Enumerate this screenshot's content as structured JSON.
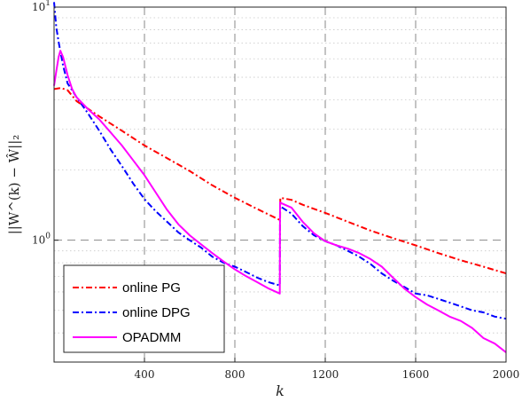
{
  "chart_data": {
    "type": "line",
    "title": "",
    "xlabel": "k",
    "ylabel": "||W^(k) − Ŵ||₂",
    "xlim": [
      0,
      2000
    ],
    "ylim": [
      0.3,
      10
    ],
    "yscale": "log",
    "x_ticks": [
      400,
      800,
      1200,
      1600,
      2000
    ],
    "x_tick_labels": [
      "400",
      "800",
      "1200",
      "1600",
      "2000"
    ],
    "y_ticks": [
      1,
      10
    ],
    "y_tick_labels": [
      "10^0",
      "10^1"
    ],
    "grid": true,
    "legend_position": "bottom-left",
    "series": [
      {
        "name": "online PG",
        "color": "#ff0000",
        "style": "dashdot",
        "points": [
          [
            0,
            4.45
          ],
          [
            30,
            4.5
          ],
          [
            60,
            4.4
          ],
          [
            100,
            3.95
          ],
          [
            200,
            3.4
          ],
          [
            300,
            2.95
          ],
          [
            400,
            2.55
          ],
          [
            500,
            2.25
          ],
          [
            600,
            1.98
          ],
          [
            700,
            1.72
          ],
          [
            800,
            1.52
          ],
          [
            900,
            1.36
          ],
          [
            1000,
            1.22
          ],
          [
            1001,
            1.52
          ],
          [
            1050,
            1.49
          ],
          [
            1100,
            1.42
          ],
          [
            1200,
            1.31
          ],
          [
            1300,
            1.2
          ],
          [
            1400,
            1.1
          ],
          [
            1500,
            1.02
          ],
          [
            1600,
            0.95
          ],
          [
            1700,
            0.88
          ],
          [
            1800,
            0.82
          ],
          [
            1900,
            0.77
          ],
          [
            2000,
            0.72
          ]
        ]
      },
      {
        "name": "online DPG",
        "color": "#0000ff",
        "style": "dashdot",
        "points": [
          [
            0,
            10.5
          ],
          [
            10,
            8.2
          ],
          [
            20,
            7.1
          ],
          [
            40,
            5.6
          ],
          [
            60,
            4.7
          ],
          [
            80,
            4.4
          ],
          [
            100,
            4.1
          ],
          [
            150,
            3.5
          ],
          [
            200,
            2.95
          ],
          [
            250,
            2.45
          ],
          [
            300,
            2.08
          ],
          [
            350,
            1.75
          ],
          [
            400,
            1.5
          ],
          [
            450,
            1.33
          ],
          [
            500,
            1.2
          ],
          [
            550,
            1.08
          ],
          [
            600,
            1.0
          ],
          [
            650,
            0.93
          ],
          [
            700,
            0.85
          ],
          [
            750,
            0.8
          ],
          [
            800,
            0.77
          ],
          [
            850,
            0.73
          ],
          [
            900,
            0.69
          ],
          [
            950,
            0.66
          ],
          [
            999,
            0.64
          ],
          [
            1000,
            1.4
          ],
          [
            1050,
            1.3
          ],
          [
            1100,
            1.15
          ],
          [
            1150,
            1.05
          ],
          [
            1200,
            0.99
          ],
          [
            1250,
            0.95
          ],
          [
            1300,
            0.9
          ],
          [
            1350,
            0.85
          ],
          [
            1400,
            0.79
          ],
          [
            1450,
            0.72
          ],
          [
            1500,
            0.67
          ],
          [
            1550,
            0.63
          ],
          [
            1600,
            0.59
          ],
          [
            1650,
            0.58
          ],
          [
            1700,
            0.56
          ],
          [
            1750,
            0.54
          ],
          [
            1800,
            0.52
          ],
          [
            1850,
            0.5
          ],
          [
            1900,
            0.49
          ],
          [
            1950,
            0.47
          ],
          [
            2000,
            0.46
          ]
        ]
      },
      {
        "name": "OPADMM",
        "color": "#ff00ff",
        "style": "solid",
        "points": [
          [
            0,
            4.6
          ],
          [
            10,
            5.3
          ],
          [
            20,
            6.1
          ],
          [
            28,
            6.5
          ],
          [
            40,
            6.1
          ],
          [
            60,
            5.1
          ],
          [
            80,
            4.45
          ],
          [
            100,
            4.1
          ],
          [
            150,
            3.65
          ],
          [
            200,
            3.3
          ],
          [
            250,
            2.9
          ],
          [
            300,
            2.55
          ],
          [
            350,
            2.2
          ],
          [
            400,
            1.9
          ],
          [
            450,
            1.6
          ],
          [
            500,
            1.35
          ],
          [
            550,
            1.17
          ],
          [
            600,
            1.05
          ],
          [
            650,
            0.96
          ],
          [
            700,
            0.88
          ],
          [
            750,
            0.81
          ],
          [
            800,
            0.75
          ],
          [
            850,
            0.7
          ],
          [
            900,
            0.66
          ],
          [
            950,
            0.62
          ],
          [
            999,
            0.59
          ],
          [
            1000,
            1.45
          ],
          [
            1050,
            1.38
          ],
          [
            1100,
            1.2
          ],
          [
            1150,
            1.07
          ],
          [
            1200,
            0.99
          ],
          [
            1250,
            0.95
          ],
          [
            1300,
            0.92
          ],
          [
            1350,
            0.88
          ],
          [
            1400,
            0.83
          ],
          [
            1450,
            0.77
          ],
          [
            1500,
            0.69
          ],
          [
            1550,
            0.62
          ],
          [
            1600,
            0.57
          ],
          [
            1650,
            0.53
          ],
          [
            1700,
            0.5
          ],
          [
            1750,
            0.47
          ],
          [
            1800,
            0.45
          ],
          [
            1850,
            0.42
          ],
          [
            1900,
            0.38
          ],
          [
            1950,
            0.36
          ],
          [
            2000,
            0.33
          ]
        ]
      }
    ]
  }
}
